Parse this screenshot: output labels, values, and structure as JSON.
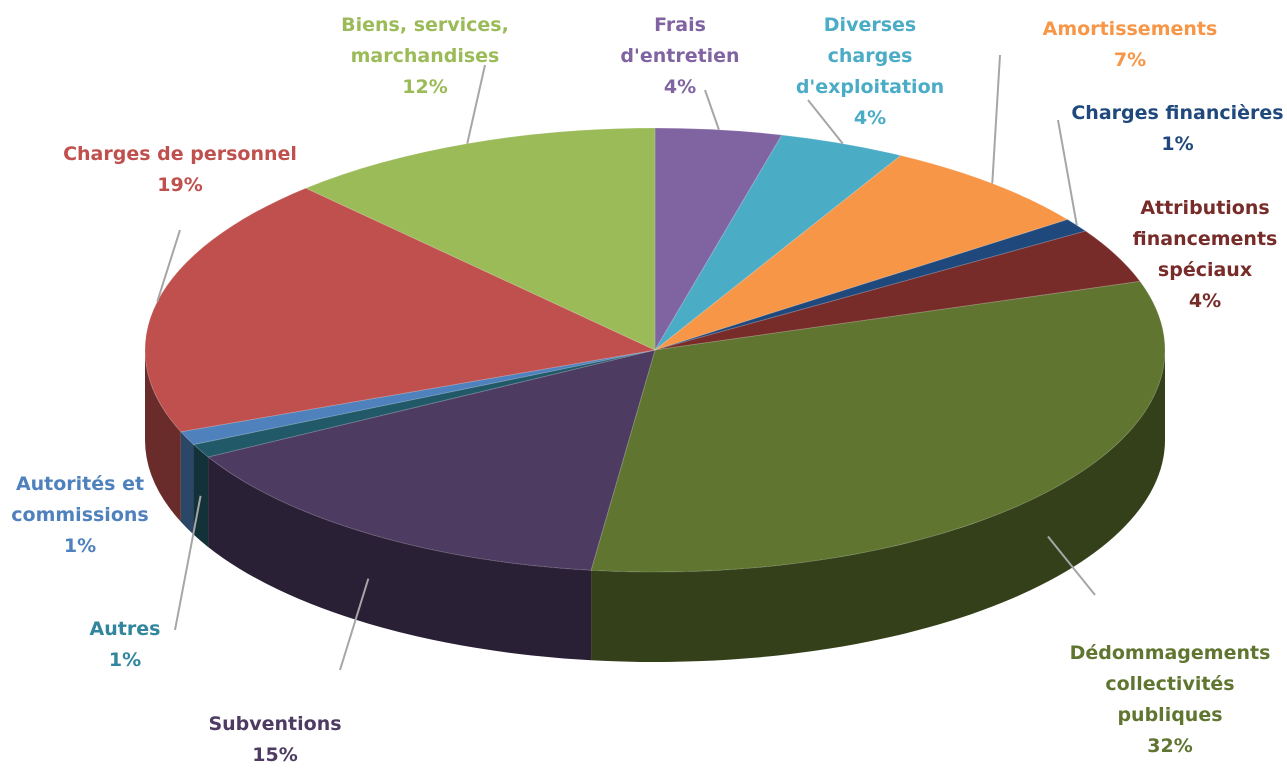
{
  "chart_data": {
    "type": "pie",
    "categories": [
      "Frais d'entretien",
      "Diverses charges d'exploitation",
      "Amortissements",
      "Charges financières",
      "Attributions financements spéciaux",
      "Dédommagements collectivités publiques",
      "Subventions",
      "Autres",
      "Autorités et commissions",
      "Charges de personnel",
      "Biens, services, marchandises"
    ],
    "values": [
      4,
      4,
      7,
      1,
      4,
      32,
      15,
      1,
      1,
      19,
      12
    ],
    "value_labels": [
      "4%",
      "4%",
      "7%",
      "1%",
      "4%",
      "32%",
      "15%",
      "1%",
      "1%",
      "19%",
      "12%"
    ],
    "colors": [
      "#8064a2",
      "#4bacc6",
      "#f79646",
      "#1f497d",
      "#772c2a",
      "#5f7530",
      "#4d3b62",
      "#215968",
      "#4f81bd",
      "#c0504d",
      "#9bbb59"
    ]
  }
}
